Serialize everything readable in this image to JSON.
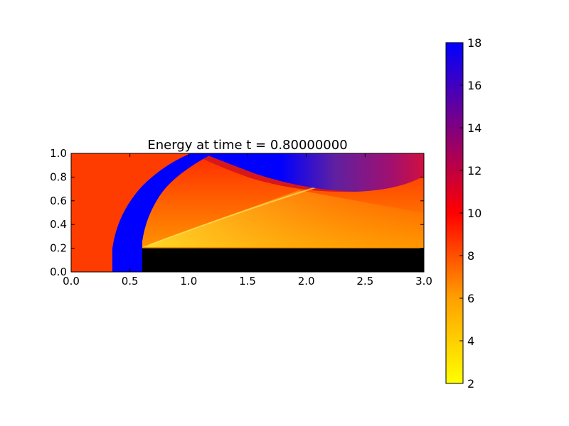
{
  "chart_data": {
    "type": "heatmap",
    "title": "Energy at time t =      0.80000000",
    "xlabel": "",
    "ylabel": "",
    "xlim": [
      0.0,
      3.0
    ],
    "ylim": [
      0.0,
      1.0
    ],
    "x_ticks": [
      "0.0",
      "0.5",
      "1.0",
      "1.5",
      "2.0",
      "2.5",
      "3.0"
    ],
    "y_ticks": [
      "0.0",
      "0.2",
      "0.4",
      "0.6",
      "0.8",
      "1.0"
    ],
    "colorbar": {
      "range": [
        2,
        18
      ],
      "ticks": [
        "2",
        "4",
        "6",
        "8",
        "10",
        "12",
        "14",
        "16",
        "18"
      ],
      "colormap": [
        "#ffff00",
        "#ffa000",
        "#ff0000",
        "#800080",
        "#0000ff"
      ]
    },
    "obstacle": {
      "x": [
        0.6,
        3.0
      ],
      "y": [
        0.0,
        0.2
      ],
      "color": "#000000"
    },
    "regions": {
      "upstream_energy": 8.4,
      "shock_energy": 18,
      "post_shock_energy": 7,
      "wedge_slipline_energy": 4
    }
  }
}
